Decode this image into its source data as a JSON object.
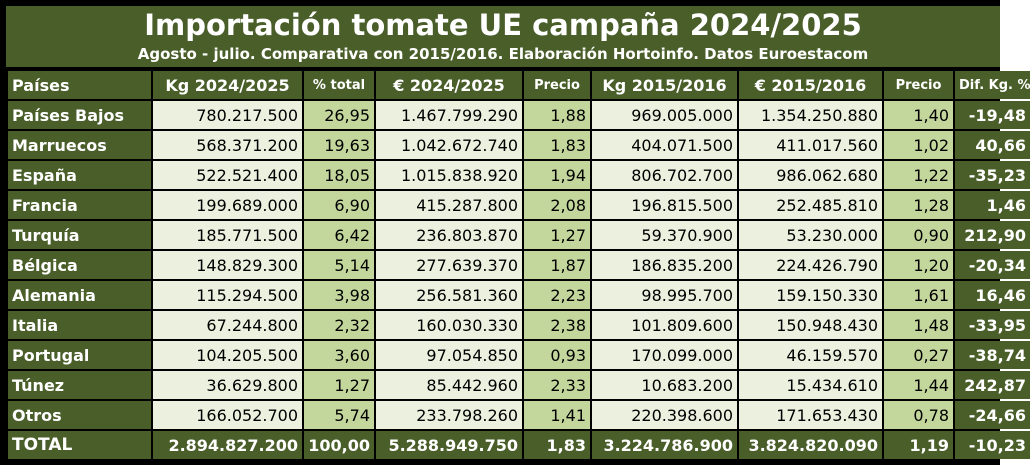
{
  "chart_data": {
    "type": "table",
    "title": "Importación tomate UE campaña 2024/2025",
    "subtitle": "Agosto - julio. Comparativa con 2015/2016. Elaboración Hortoinfo. Datos Euroestacom",
    "columns": [
      "Países",
      "Kg 2024/2025",
      "% total",
      "€ 2024/2025",
      "Precio",
      "Kg 2015/2016",
      "€ 2015/2016",
      "Precio",
      "Dif. Kg. %"
    ],
    "rows": [
      [
        "Países Bajos",
        "780.217.500",
        "26,95",
        "1.467.799.290",
        "1,88",
        "969.005.000",
        "1.354.250.880",
        "1,40",
        "-19,48"
      ],
      [
        "Marruecos",
        "568.371.200",
        "19,63",
        "1.042.672.740",
        "1,83",
        "404.071.500",
        "411.017.560",
        "1,02",
        "40,66"
      ],
      [
        "España",
        "522.521.400",
        "18,05",
        "1.015.838.920",
        "1,94",
        "806.702.700",
        "986.062.680",
        "1,22",
        "-35,23"
      ],
      [
        "Francia",
        "199.689.000",
        "6,90",
        "415.287.800",
        "2,08",
        "196.815.500",
        "252.485.810",
        "1,28",
        "1,46"
      ],
      [
        "Turquía",
        "185.771.500",
        "6,42",
        "236.803.870",
        "1,27",
        "59.370.900",
        "53.230.000",
        "0,90",
        "212,90"
      ],
      [
        "Bélgica",
        "148.829.300",
        "5,14",
        "277.639.370",
        "1,87",
        "186.835.200",
        "224.426.790",
        "1,20",
        "-20,34"
      ],
      [
        "Alemania",
        "115.294.500",
        "3,98",
        "256.581.360",
        "2,23",
        "98.995.700",
        "159.150.330",
        "1,61",
        "16,46"
      ],
      [
        "Italia",
        "67.244.800",
        "2,32",
        "160.030.330",
        "2,38",
        "101.809.600",
        "150.948.430",
        "1,48",
        "-33,95"
      ],
      [
        "Portugal",
        "104.205.500",
        "3,60",
        "97.054.850",
        "0,93",
        "170.099.000",
        "46.159.570",
        "0,27",
        "-38,74"
      ],
      [
        "Túnez",
        "36.629.800",
        "1,27",
        "85.442.960",
        "2,33",
        "10.683.200",
        "15.434.610",
        "1,44",
        "242,87"
      ],
      [
        "Otros",
        "166.052.700",
        "5,74",
        "233.798.260",
        "1,41",
        "220.398.600",
        "171.653.430",
        "0,78",
        "-24,66"
      ]
    ],
    "total": [
      "TOTAL",
      "2.894.827.200",
      "100,00",
      "5.288.949.750",
      "1,83",
      "3.224.786.900",
      "3.824.820.090",
      "1,19",
      "-10,23"
    ]
  },
  "colors": {
    "dark_green": "#4a5e2a",
    "light_green": "#c3d69b",
    "pale_green": "#ecf1df"
  }
}
